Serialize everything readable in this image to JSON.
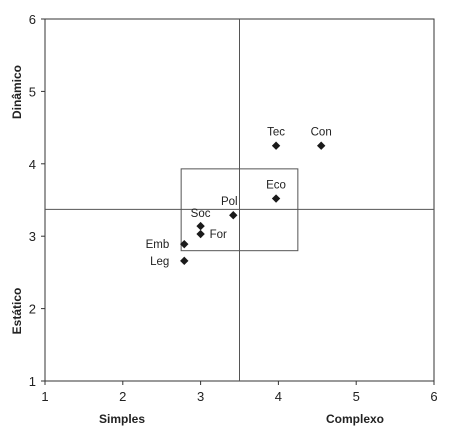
{
  "chart_data": {
    "type": "scatter",
    "xlim": [
      1,
      6
    ],
    "ylim": [
      1,
      6
    ],
    "x_ticks": [
      1,
      2,
      3,
      4,
      5,
      6
    ],
    "y_ticks": [
      1,
      2,
      3,
      4,
      5,
      6
    ],
    "x_tick_labels": [
      "1",
      "2",
      "3",
      "4",
      "5",
      "6"
    ],
    "y_tick_labels": [
      "1",
      "2",
      "3",
      "4",
      "5",
      "6"
    ],
    "x_axis_labels": {
      "low": "Simples",
      "high": "Complexo"
    },
    "y_axis_labels": {
      "low": "Estático",
      "high": "Dinâmico"
    },
    "reference_lines": {
      "x": 3.5,
      "y": 3.37
    },
    "highlight_box": {
      "x": [
        2.75,
        4.25
      ],
      "y": [
        2.8,
        3.93
      ]
    },
    "grid": false,
    "marker": "diamond",
    "marker_color": "#1a1a1a",
    "points": [
      {
        "label": "Tec",
        "x": 3.97,
        "y": 4.25
      },
      {
        "label": "Con",
        "x": 4.55,
        "y": 4.25
      },
      {
        "label": "Eco",
        "x": 3.97,
        "y": 3.52
      },
      {
        "label": "Pol",
        "x": 3.42,
        "y": 3.29
      },
      {
        "label": "Soc",
        "x": 3.0,
        "y": 3.14
      },
      {
        "label": "For",
        "x": 3.0,
        "y": 3.03
      },
      {
        "label": "Emb",
        "x": 2.79,
        "y": 2.89
      },
      {
        "label": "Leg",
        "x": 2.79,
        "y": 2.66
      }
    ]
  }
}
